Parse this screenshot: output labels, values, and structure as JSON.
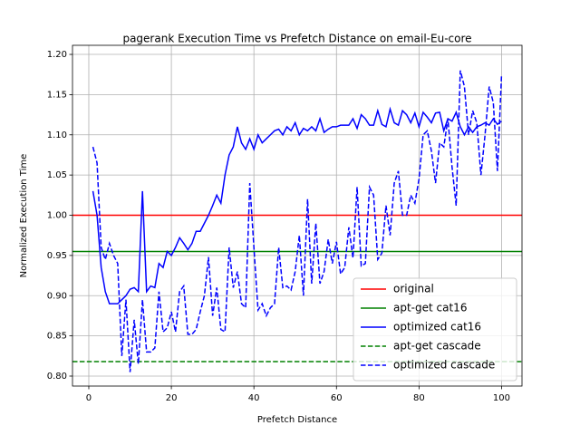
{
  "chart_data": {
    "type": "line",
    "title": "pagerank Execution Time vs Prefetch Distance on email-Eu-core",
    "xlabel": "Prefetch Distance",
    "ylabel": "Normalized Execution Time",
    "xlim": [
      -3.95,
      104.95
    ],
    "ylim": [
      0.7876,
      1.2113
    ],
    "xticks": [
      0,
      20,
      40,
      60,
      80,
      100
    ],
    "yticks": [
      {
        "value": 0.8,
        "label": "0.80"
      },
      0.85,
      {
        "value": 0.9,
        "label": "0.90"
      },
      0.95,
      {
        "value": 1.0,
        "label": "1.00"
      },
      1.05,
      {
        "value": 1.1,
        "label": "1.10"
      },
      1.15,
      {
        "value": 1.2,
        "label": "1.20"
      }
    ],
    "grid": true,
    "legend": "lower right",
    "x": [
      1,
      2,
      3,
      4,
      5,
      6,
      7,
      8,
      9,
      10,
      11,
      12,
      13,
      14,
      15,
      16,
      17,
      18,
      19,
      20,
      21,
      22,
      23,
      24,
      25,
      26,
      27,
      28,
      29,
      30,
      31,
      32,
      33,
      34,
      35,
      36,
      37,
      38,
      39,
      40,
      41,
      42,
      43,
      44,
      45,
      46,
      47,
      48,
      49,
      50,
      51,
      52,
      53,
      54,
      55,
      56,
      57,
      58,
      59,
      60,
      61,
      62,
      63,
      64,
      65,
      66,
      67,
      68,
      69,
      70,
      71,
      72,
      73,
      74,
      75,
      76,
      77,
      78,
      79,
      80,
      81,
      82,
      83,
      84,
      85,
      86,
      87,
      88,
      89,
      90,
      91,
      92,
      93,
      94,
      95,
      96,
      97,
      98,
      99,
      100
    ],
    "series": [
      {
        "name": "original",
        "color": "#ff0000",
        "dashed": false,
        "value": 1.0
      },
      {
        "name": "apt-get cat16",
        "color": "#008000",
        "dashed": false,
        "value": 0.955
      },
      {
        "name": "optimized cat16",
        "color": "#0000ff",
        "dashed": false,
        "values": [
          1.03,
          1.0,
          0.935,
          0.905,
          0.89,
          0.89,
          0.89,
          0.895,
          0.9,
          0.908,
          0.91,
          0.905,
          1.03,
          0.905,
          0.912,
          0.91,
          0.94,
          0.935,
          0.955,
          0.95,
          0.96,
          0.972,
          0.965,
          0.957,
          0.965,
          0.98,
          0.98,
          0.99,
          1.0,
          1.012,
          1.025,
          1.015,
          1.05,
          1.075,
          1.085,
          1.11,
          1.09,
          1.082,
          1.095,
          1.082,
          1.1,
          1.09,
          1.095,
          1.1,
          1.105,
          1.107,
          1.1,
          1.11,
          1.105,
          1.115,
          1.1,
          1.108,
          1.105,
          1.11,
          1.105,
          1.12,
          1.103,
          1.107,
          1.11,
          1.11,
          1.112,
          1.112,
          1.112,
          1.12,
          1.108,
          1.125,
          1.12,
          1.112,
          1.112,
          1.13,
          1.113,
          1.11,
          1.132,
          1.115,
          1.112,
          1.13,
          1.125,
          1.115,
          1.127,
          1.11,
          1.128,
          1.122,
          1.115,
          1.127,
          1.128,
          1.105,
          1.12,
          1.117,
          1.128,
          1.11,
          1.1,
          1.11,
          1.103,
          1.11,
          1.112,
          1.115,
          1.112,
          1.12,
          1.113,
          1.117
        ]
      },
      {
        "name": "apt-get cascade",
        "color": "#008000",
        "dashed": true,
        "value": 0.818
      },
      {
        "name": "optimized cascade",
        "color": "#0000ff",
        "dashed": true,
        "values": [
          1.085,
          1.065,
          0.96,
          0.945,
          0.965,
          0.95,
          0.94,
          0.825,
          0.895,
          0.805,
          0.87,
          0.815,
          0.895,
          0.83,
          0.83,
          0.835,
          0.905,
          0.855,
          0.86,
          0.88,
          0.855,
          0.905,
          0.912,
          0.852,
          0.852,
          0.858,
          0.88,
          0.9,
          0.948,
          0.875,
          0.91,
          0.858,
          0.855,
          0.96,
          0.91,
          0.93,
          0.89,
          0.885,
          1.04,
          0.96,
          0.882,
          0.89,
          0.875,
          0.885,
          0.89,
          0.96,
          0.91,
          0.912,
          0.907,
          0.93,
          0.975,
          0.9,
          1.02,
          0.915,
          0.99,
          0.915,
          0.93,
          0.97,
          0.94,
          0.967,
          0.927,
          0.935,
          0.985,
          0.947,
          1.035,
          0.937,
          0.94,
          1.035,
          1.025,
          0.945,
          0.953,
          1.012,
          0.975,
          1.04,
          1.055,
          1.0,
          1.0,
          1.025,
          1.015,
          1.045,
          1.1,
          1.105,
          1.08,
          1.04,
          1.09,
          1.085,
          1.12,
          1.06,
          1.012,
          1.18,
          1.16,
          1.1,
          1.13,
          1.115,
          1.05,
          1.1,
          1.16,
          1.14,
          1.055,
          1.175
        ]
      }
    ]
  }
}
